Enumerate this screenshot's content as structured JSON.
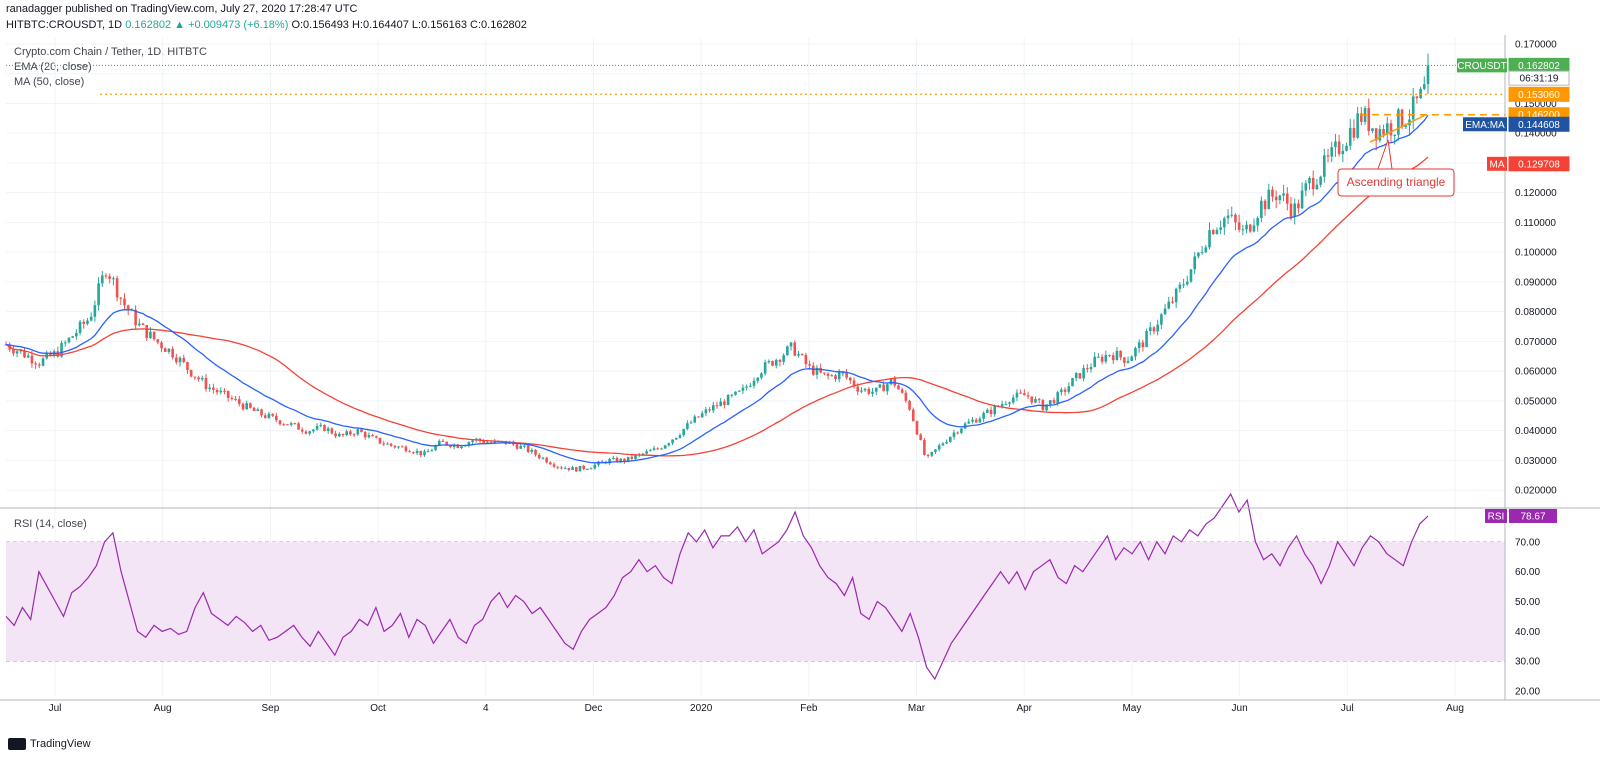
{
  "header": {
    "published": "ranadagger published on TradingView.com, July 27, 2020 17:28:47 UTC",
    "symbol": "HITBTC:CROUSDT, 1D",
    "change": "0.162802 ▲ +0.009473 (+6.18%)",
    "ohlc": "O:0.156493 H:0.164407 L:0.156163 C:0.162802"
  },
  "legend": {
    "title": "Crypto.com Chain / Tether, 1D, HITBTC",
    "ema": "EMA (20, close)",
    "ma": "MA (50, close)",
    "rsi": "RSI (14, close)"
  },
  "footer": {
    "brand": "TradingView"
  },
  "colors": {
    "up": "#26a69a",
    "down": "#ef5350",
    "ema": "#2962ff",
    "ma": "#f44336",
    "rsi_line": "#9c27b0",
    "rsi_band": "#f3e5f5",
    "orange": "#ff9800",
    "badge_price": "#4caf50",
    "badge_emama": "#2154a0"
  },
  "chart_data": [
    {
      "type": "candlestick",
      "title": "Crypto.com Chain / Tether, 1D, HITBTC",
      "ylim": [
        0.015,
        0.172
      ],
      "y_ticks": [
        "0.170000",
        "0.160000",
        "0.150000",
        "0.140000",
        "0.130000",
        "0.120000",
        "0.110000",
        "0.100000",
        "0.090000",
        "0.080000",
        "0.070000",
        "0.060000",
        "0.050000",
        "0.040000",
        "0.030000",
        "0.020000"
      ],
      "x_ticks": [
        "Jul",
        "Aug",
        "Sep",
        "Oct",
        "4",
        "Dec",
        "2020",
        "Feb",
        "Mar",
        "Apr",
        "May",
        "Jun",
        "Jul",
        "Aug"
      ],
      "price_path": [
        [
          0.069,
          0.064
        ],
        [
          0.066,
          0.06
        ],
        [
          0.063,
          0.062
        ],
        [
          0.066,
          0.07
        ],
        [
          0.072,
          0.075
        ],
        [
          0.078,
          0.092
        ],
        [
          0.095,
          0.085
        ],
        [
          0.083,
          0.078
        ],
        [
          0.075,
          0.068
        ],
        [
          0.07,
          0.065
        ],
        [
          0.066,
          0.06
        ],
        [
          0.06,
          0.055
        ],
        [
          0.055,
          0.052
        ],
        [
          0.052,
          0.05
        ],
        [
          0.049,
          0.046
        ],
        [
          0.046,
          0.045
        ],
        [
          0.044,
          0.043
        ],
        [
          0.042,
          0.041
        ],
        [
          0.04,
          0.04
        ],
        [
          0.041,
          0.039
        ],
        [
          0.038,
          0.04
        ],
        [
          0.04,
          0.037
        ],
        [
          0.037,
          0.035
        ],
        [
          0.035,
          0.034
        ],
        [
          0.034,
          0.032
        ],
        [
          0.032,
          0.035
        ],
        [
          0.036,
          0.034
        ],
        [
          0.035,
          0.038
        ],
        [
          0.037,
          0.036
        ],
        [
          0.036,
          0.037
        ],
        [
          0.036,
          0.035
        ],
        [
          0.034,
          0.032
        ],
        [
          0.031,
          0.029
        ],
        [
          0.028,
          0.027
        ],
        [
          0.027,
          0.028
        ],
        [
          0.028,
          0.029
        ],
        [
          0.03,
          0.03
        ],
        [
          0.03,
          0.031
        ],
        [
          0.032,
          0.034
        ],
        [
          0.034,
          0.037
        ],
        [
          0.038,
          0.042
        ],
        [
          0.043,
          0.046
        ],
        [
          0.047,
          0.048
        ],
        [
          0.05,
          0.052
        ],
        [
          0.053,
          0.058
        ],
        [
          0.06,
          0.063
        ],
        [
          0.064,
          0.068
        ],
        [
          0.068,
          0.063
        ],
        [
          0.061,
          0.058
        ],
        [
          0.058,
          0.06
        ],
        [
          0.059,
          0.055
        ],
        [
          0.054,
          0.052
        ],
        [
          0.053,
          0.059
        ],
        [
          0.057,
          0.049
        ],
        [
          0.048,
          0.03
        ],
        [
          0.03,
          0.035
        ],
        [
          0.036,
          0.04
        ],
        [
          0.041,
          0.044
        ],
        [
          0.044,
          0.046
        ],
        [
          0.047,
          0.05
        ],
        [
          0.051,
          0.054
        ],
        [
          0.052,
          0.048
        ],
        [
          0.048,
          0.05
        ],
        [
          0.052,
          0.055
        ],
        [
          0.058,
          0.062
        ],
        [
          0.063,
          0.066
        ],
        [
          0.066,
          0.063
        ],
        [
          0.064,
          0.068
        ],
        [
          0.07,
          0.076
        ],
        [
          0.078,
          0.084
        ],
        [
          0.086,
          0.094
        ],
        [
          0.096,
          0.104
        ],
        [
          0.108,
          0.118
        ],
        [
          0.112,
          0.104
        ],
        [
          0.106,
          0.114
        ],
        [
          0.116,
          0.124
        ],
        [
          0.12,
          0.114
        ],
        [
          0.114,
          0.122
        ],
        [
          0.124,
          0.128
        ],
        [
          0.13,
          0.136
        ],
        [
          0.138,
          0.146
        ],
        [
          0.146,
          0.142
        ],
        [
          0.141,
          0.144
        ],
        [
          0.143,
          0.146
        ],
        [
          0.147,
          0.153
        ],
        [
          0.156,
          0.1628
        ]
      ],
      "series": [
        {
          "name": "EMA (20, close)",
          "last_value": "0.144608"
        },
        {
          "name": "MA (50, close)",
          "last_value": "0.129708"
        }
      ],
      "badges": [
        {
          "label": "CROUSDT",
          "value": "0.162802",
          "price": 0.162802,
          "color": "#4caf50"
        },
        {
          "label": "",
          "value": "06:31:19",
          "price": 0.1585,
          "color": "#ffffff"
        },
        {
          "label": "",
          "value": "0.153060",
          "price": 0.15306,
          "color": "#ff9800"
        },
        {
          "label": "",
          "value": "0.146200",
          "price": 0.1462,
          "color": "#ff9800"
        },
        {
          "label": "EMA:MA",
          "value": "0.144608",
          "price": 0.143,
          "color": "#2154a0"
        },
        {
          "label": "MA",
          "value": "0.129708",
          "price": 0.1297,
          "color": "#f44336"
        }
      ],
      "annotation": "Ascending triangle",
      "resistance_levels": [
        0.15306,
        0.1462
      ]
    },
    {
      "type": "line",
      "title": "RSI (14, close)",
      "ylim": [
        18,
        80
      ],
      "y_ticks": [
        "70.00",
        "60.00",
        "50.00",
        "40.00",
        "30.00",
        "20.00"
      ],
      "band": [
        30,
        70
      ],
      "last_value": "78.67",
      "badge_label": "RSI",
      "values": [
        45,
        42,
        48,
        44,
        60,
        55,
        50,
        45,
        53,
        55,
        58,
        62,
        70,
        73,
        60,
        50,
        40,
        38,
        42,
        40,
        41,
        39,
        40,
        48,
        53,
        46,
        44,
        42,
        45,
        43,
        40,
        42,
        37,
        38,
        40,
        42,
        38,
        35,
        40,
        36,
        32,
        38,
        40,
        44,
        42,
        48,
        40,
        42,
        46,
        38,
        44,
        42,
        36,
        40,
        44,
        38,
        36,
        42,
        44,
        50,
        53,
        48,
        52,
        50,
        46,
        48,
        44,
        40,
        36,
        34,
        40,
        44,
        46,
        48,
        52,
        58,
        60,
        64,
        60,
        62,
        58,
        56,
        66,
        73,
        70,
        74,
        68,
        72,
        72,
        75,
        70,
        74,
        66,
        68,
        70,
        74,
        80,
        72,
        68,
        62,
        58,
        56,
        52,
        58,
        46,
        44,
        50,
        48,
        44,
        40,
        46,
        38,
        28,
        24,
        30,
        36,
        40,
        44,
        48,
        52,
        56,
        60,
        56,
        60,
        54,
        60,
        62,
        64,
        58,
        56,
        62,
        60,
        64,
        68,
        72,
        64,
        68,
        66,
        70,
        64,
        70,
        66,
        72,
        70,
        74,
        72,
        76,
        78,
        82,
        86,
        80,
        84,
        70,
        64,
        66,
        62,
        68,
        72,
        66,
        62,
        56,
        62,
        70,
        66,
        62,
        68,
        72,
        70,
        66,
        64,
        62,
        70,
        76,
        78.67
      ]
    }
  ]
}
